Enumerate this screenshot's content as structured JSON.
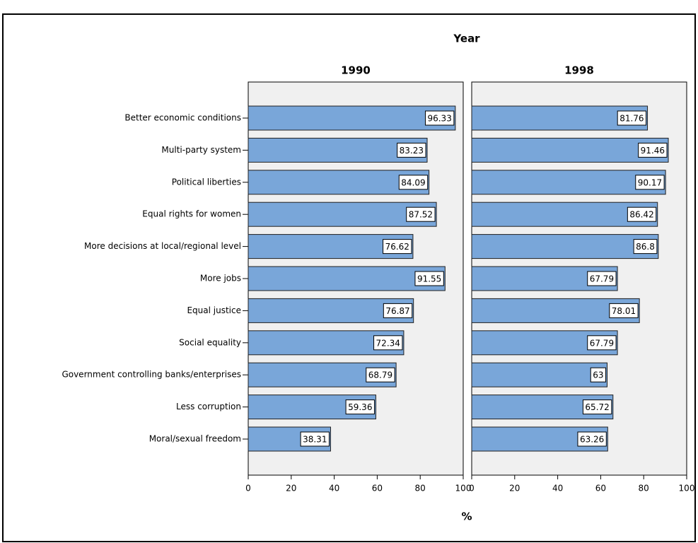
{
  "chart_data": {
    "type": "bar",
    "orientation": "horizontal",
    "facet_label": "Year",
    "xlabel": "%",
    "categories": [
      "Better economic conditions",
      "Multi-party system",
      "Political liberties",
      "Equal rights for women",
      "More decisions at local/regional level",
      "More jobs",
      "Equal justice",
      "Social equality",
      "Government controlling banks/enterprises",
      "Less corruption",
      "Moral/sexual freedom"
    ],
    "series": [
      {
        "name": "1990",
        "color": "#79a6d9",
        "values": [
          96.33,
          83.23,
          84.09,
          87.52,
          76.62,
          91.55,
          76.87,
          72.34,
          68.79,
          59.36,
          38.31
        ]
      },
      {
        "name": "1998",
        "color": "#79a6d9",
        "values": [
          81.76,
          91.46,
          90.17,
          86.42,
          86.8,
          67.79,
          78.01,
          67.79,
          63,
          65.72,
          63.26
        ]
      }
    ],
    "xlim": [
      0,
      100
    ],
    "xticks": [
      0,
      20,
      40,
      60,
      80,
      100
    ]
  }
}
